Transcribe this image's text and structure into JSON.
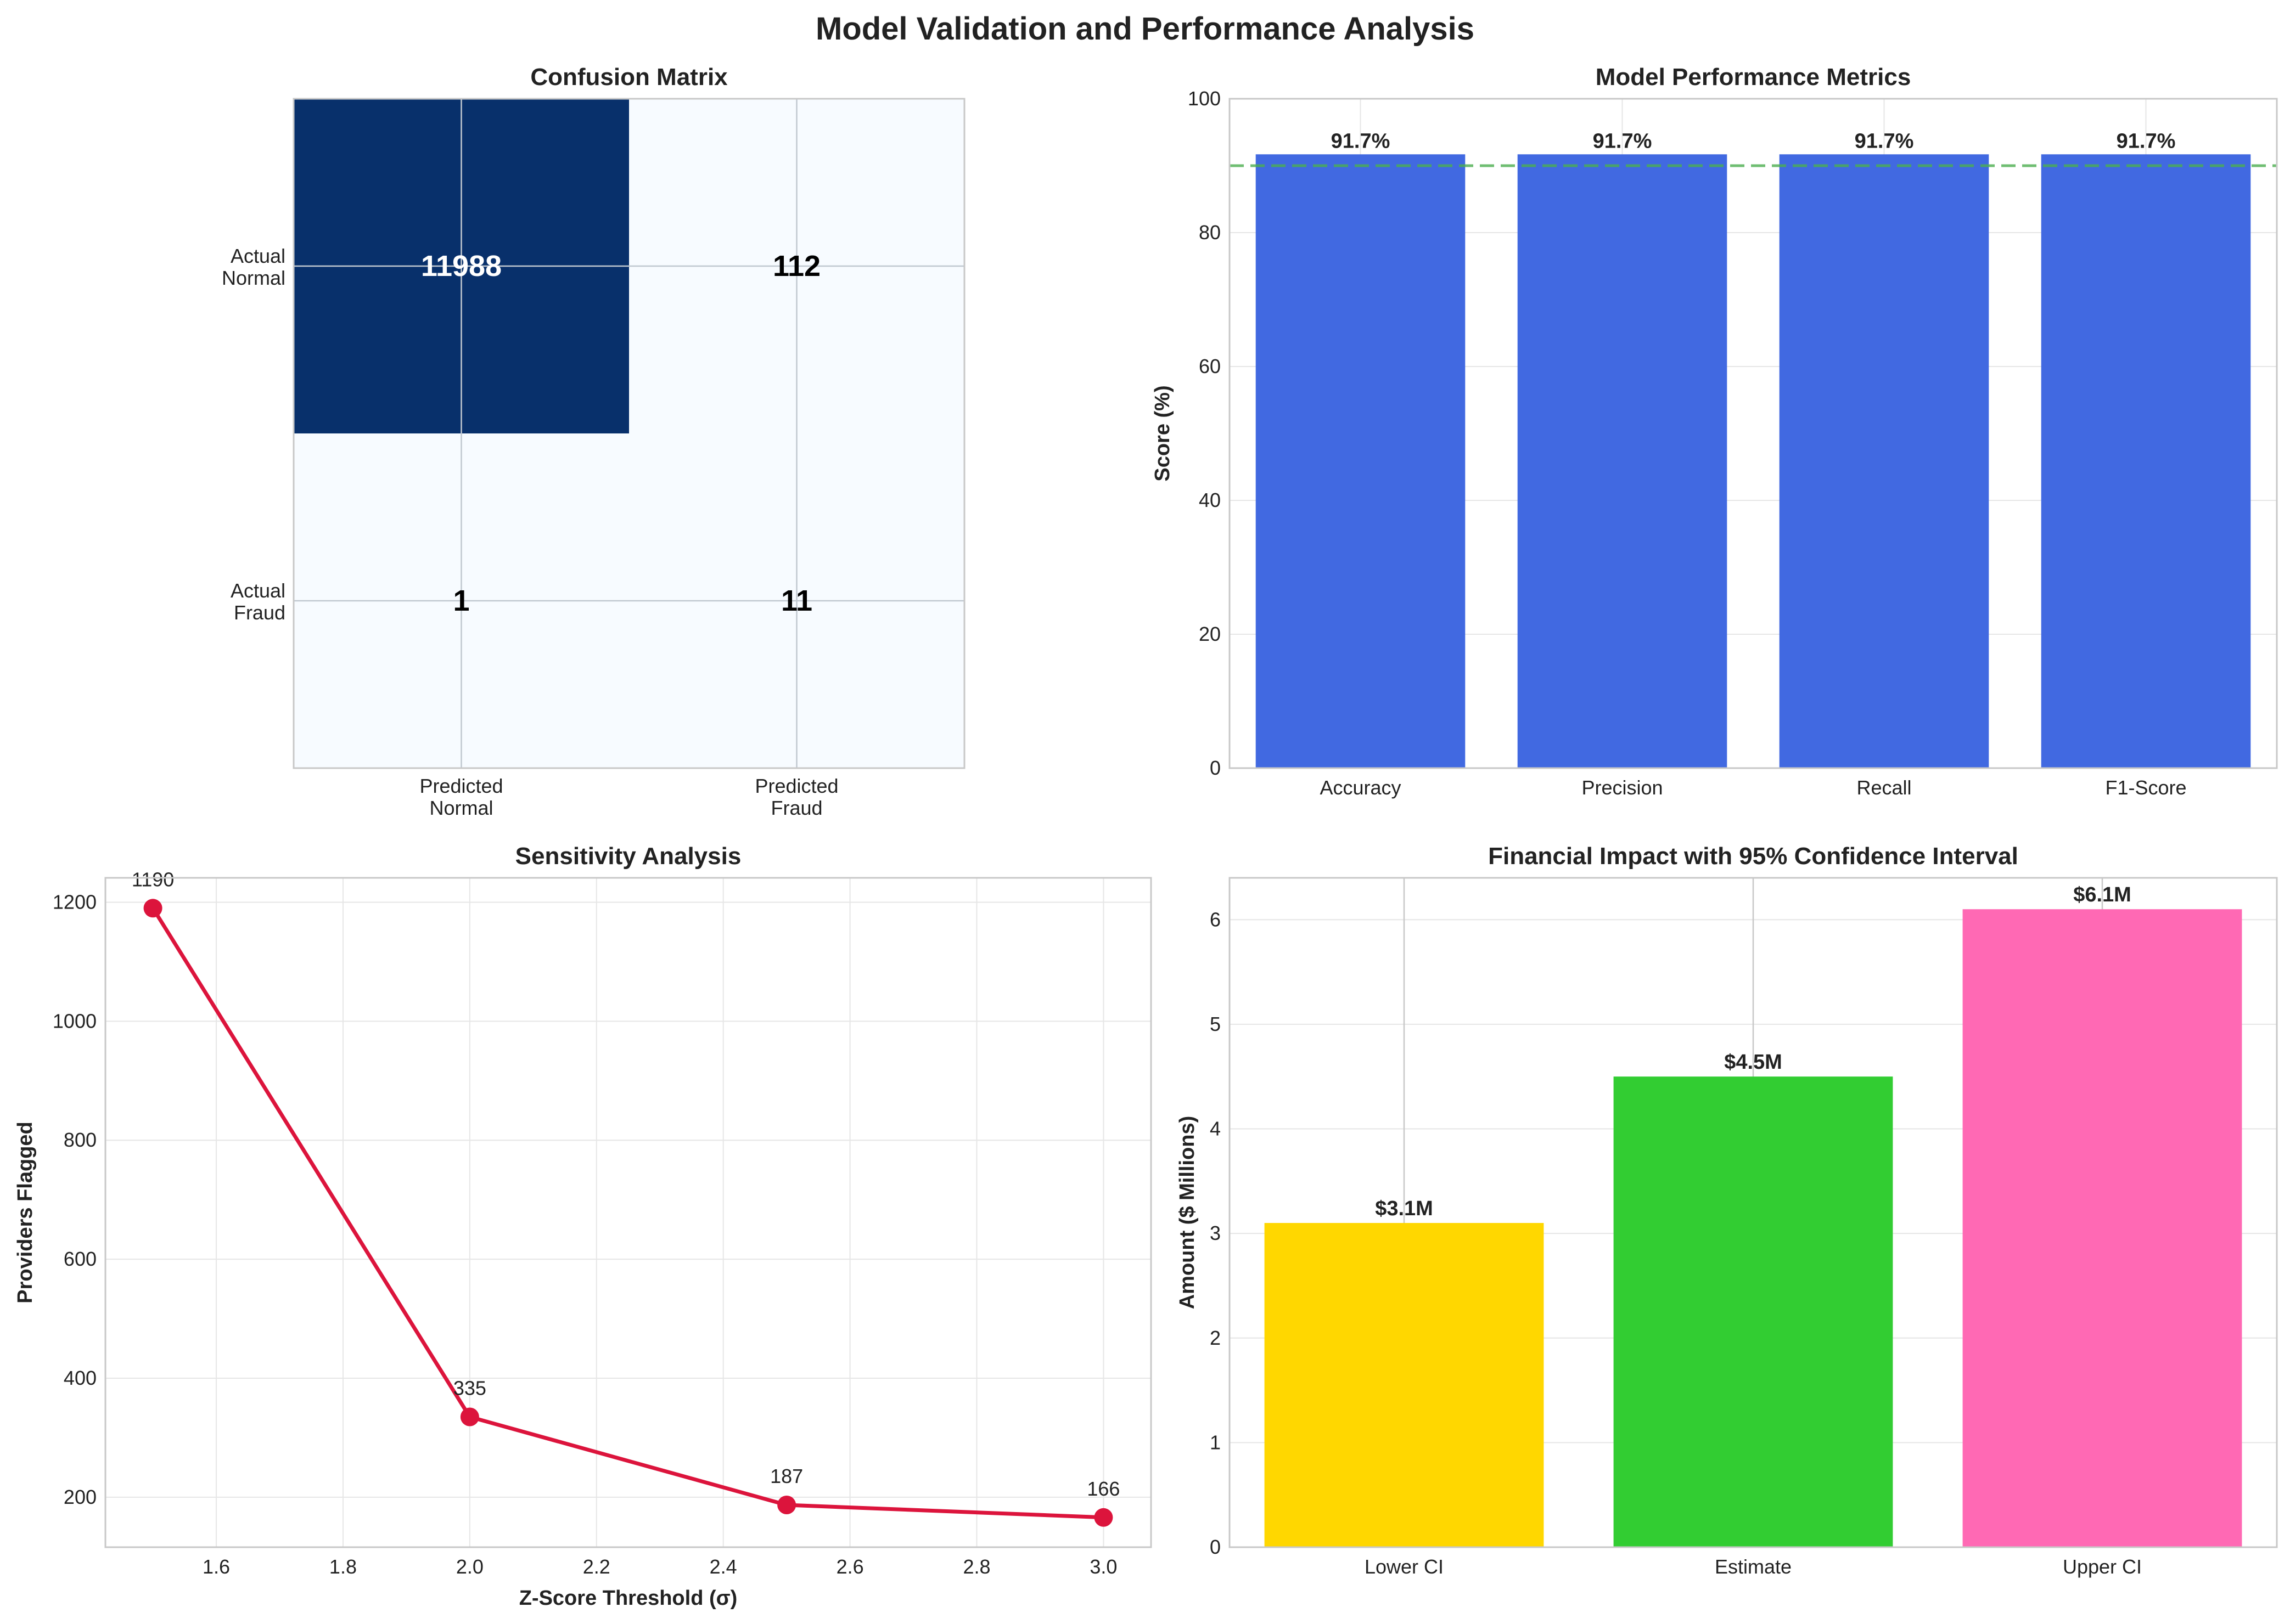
{
  "figure": {
    "title": "Model Validation and Performance Analysis"
  },
  "colors": {
    "cm_high": "#08306b",
    "cm_low": "#f7fbff",
    "metric_bar": "#4169e1",
    "threshold_line": "#4caf50",
    "sensitivity_line": "#dc143c",
    "financial_bars": [
      "#ffd700",
      "#32cd32",
      "#ff69b4"
    ],
    "grid": "#e6e6e6",
    "frame": "#c8c8c8"
  },
  "chart_data": [
    {
      "type": "heatmap",
      "title": "Confusion Matrix",
      "row_labels": [
        "Actual\nNormal",
        "Actual\nFraud"
      ],
      "col_labels": [
        "Predicted\nNormal",
        "Predicted\nFraud"
      ],
      "values": [
        [
          11988,
          112
        ],
        [
          1,
          11
        ]
      ],
      "text_colors": [
        [
          "white",
          "black"
        ],
        [
          "black",
          "black"
        ]
      ]
    },
    {
      "type": "bar",
      "title": "Model Performance Metrics",
      "categories": [
        "Accuracy",
        "Precision",
        "Recall",
        "F1-Score"
      ],
      "values": [
        91.7,
        91.7,
        91.7,
        91.7
      ],
      "data_labels": [
        "91.7%",
        "91.7%",
        "91.7%",
        "91.7%"
      ],
      "ylabel": "Score (%)",
      "ylim": [
        0,
        100
      ],
      "yticks": [
        0,
        20,
        40,
        60,
        80,
        100
      ],
      "reference_line": 90,
      "grid": true
    },
    {
      "type": "line",
      "title": "Sensitivity Analysis",
      "x": [
        1.5,
        2.0,
        2.5,
        3.0
      ],
      "y": [
        1190,
        335,
        187,
        166
      ],
      "point_labels": [
        "1190",
        "335",
        "187",
        "166"
      ],
      "xlabel": "Z-Score Threshold (σ)",
      "ylabel": "Providers Flagged",
      "xlim": [
        1.425,
        3.075
      ],
      "ylim": [
        116,
        1241
      ],
      "xticks": [
        1.6,
        1.8,
        2.0,
        2.2,
        2.4,
        2.6,
        2.8,
        3.0
      ],
      "xtick_labels": [
        "1.6",
        "1.8",
        "2.0",
        "2.2",
        "2.4",
        "2.6",
        "2.8",
        "3.0"
      ],
      "yticks": [
        200,
        400,
        600,
        800,
        1000,
        1200
      ],
      "grid": true
    },
    {
      "type": "bar",
      "title": "Financial Impact with 95% Confidence Interval",
      "categories": [
        "Lower CI",
        "Estimate",
        "Upper CI"
      ],
      "values": [
        3.1,
        4.5,
        6.1
      ],
      "data_labels": [
        "$3.1M",
        "$4.5M",
        "$6.1M"
      ],
      "ylabel": "Amount ($ Millions)",
      "ylim": [
        0,
        6.4
      ],
      "yticks": [
        0,
        1,
        2,
        3,
        4,
        5,
        6
      ],
      "grid": true
    }
  ]
}
